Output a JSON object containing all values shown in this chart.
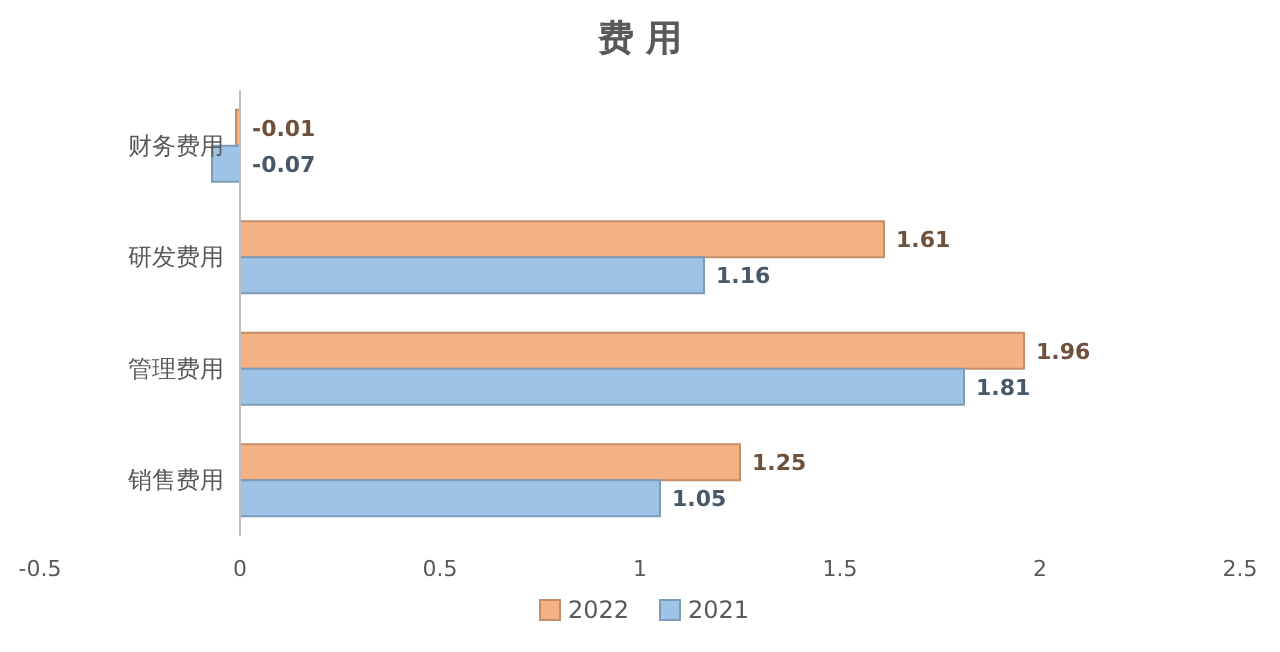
{
  "chart_data": {
    "type": "bar",
    "orientation": "horizontal",
    "title": "费 用",
    "categories": [
      "财务费用",
      "研发费用",
      "管理费用",
      "销售费用"
    ],
    "series": [
      {
        "name": "2022",
        "color": "#f4b183",
        "values": [
          -0.01,
          1.61,
          1.96,
          1.25
        ]
      },
      {
        "name": "2021",
        "color": "#9dc3e6",
        "values": [
          -0.07,
          1.16,
          1.81,
          1.05
        ]
      }
    ],
    "xlim": [
      -0.5,
      2.5
    ],
    "xticks": [
      -0.5,
      0,
      0.5,
      1,
      1.5,
      2,
      2.5
    ],
    "data_labels": true,
    "legend": "bottom"
  }
}
